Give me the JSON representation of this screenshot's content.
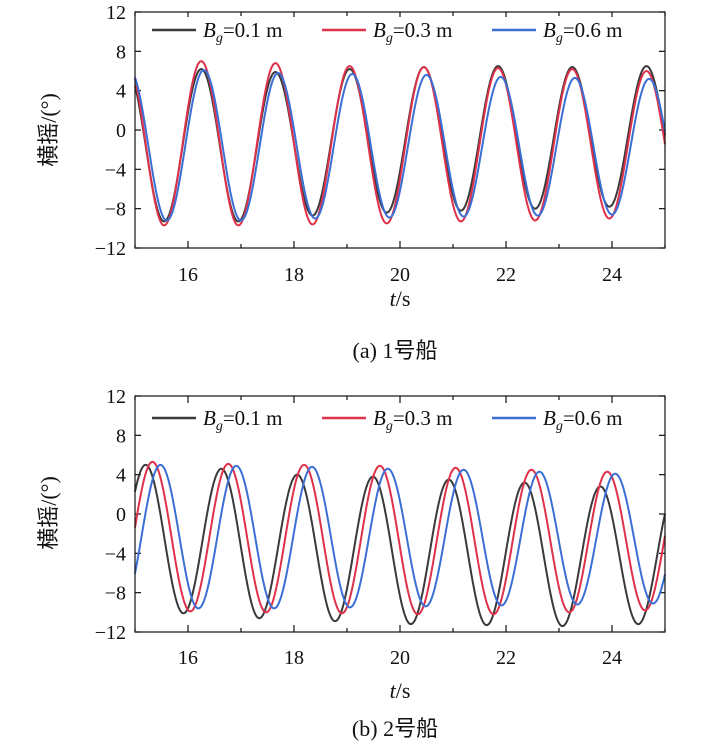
{
  "figure": {
    "panels": [
      {
        "caption": "(a) 1号船"
      },
      {
        "caption": "(b) 2号船"
      }
    ]
  },
  "chart_data": [
    {
      "type": "line",
      "caption": "(a) 1号船",
      "xlabel": {
        "italic": "t",
        "rest": "/s"
      },
      "ylabel": "横摇/(°)",
      "xlim": [
        15,
        25
      ],
      "ylim": [
        -12,
        12
      ],
      "xticks": [
        16,
        18,
        20,
        22,
        24
      ],
      "yticks": [
        -12,
        -8,
        -4,
        0,
        4,
        8,
        12
      ],
      "legend_position": "top",
      "grid": false,
      "series": [
        {
          "name": "Bg=0.1 m",
          "label_main": "B",
          "label_sub": "g",
          "label_rest": "=0.1 m",
          "color": "#3a3a3a",
          "period": 1.4,
          "first_peak": 16.25,
          "peaks": [
            6.2,
            5.9,
            6.2,
            6.4,
            6.5,
            6.4,
            6.5
          ],
          "troughs": [
            -9.3,
            -8.7,
            -8.4,
            -8.2,
            -8.0,
            -7.8,
            -7.6
          ]
        },
        {
          "name": "Bg=0.3 m",
          "label_main": "B",
          "label_sub": "g",
          "label_rest": "=0.3 m",
          "color": "#e0314a",
          "period": 1.4,
          "first_peak": 16.25,
          "peaks": [
            7.0,
            6.8,
            6.5,
            6.4,
            6.3,
            6.2,
            6.0
          ],
          "troughs": [
            -9.7,
            -9.6,
            -9.5,
            -9.3,
            -9.2,
            -9.0,
            -8.9
          ]
        },
        {
          "name": "Bg=0.6 m",
          "label_main": "B",
          "label_sub": "g",
          "label_rest": "=0.6 m",
          "color": "#3b6fd6",
          "period": 1.4,
          "first_peak": 16.3,
          "peaks": [
            6.1,
            5.8,
            5.7,
            5.6,
            5.4,
            5.3,
            5.2
          ],
          "troughs": [
            -9.2,
            -9.0,
            -8.9,
            -8.8,
            -8.7,
            -8.6,
            -8.6
          ]
        }
      ]
    },
    {
      "type": "line",
      "caption": "(b) 2号船",
      "xlabel": {
        "italic": "t",
        "rest": "/s"
      },
      "ylabel": "横摇/(°)",
      "xlim": [
        15,
        25
      ],
      "ylim": [
        -12,
        12
      ],
      "xticks": [
        16,
        18,
        20,
        22,
        24
      ],
      "yticks": [
        -12,
        -8,
        -4,
        0,
        4,
        8,
        12
      ],
      "legend_position": "top",
      "grid": false,
      "series": [
        {
          "name": "Bg=0.1 m",
          "label_main": "B",
          "label_sub": "g",
          "label_rest": "=0.1 m",
          "color": "#3a3a3a",
          "period": 1.43,
          "first_peak": 15.2,
          "peaks": [
            5.0,
            4.6,
            4.0,
            3.8,
            3.5,
            3.2,
            2.8
          ],
          "troughs": [
            -10.1,
            -10.6,
            -10.9,
            -11.2,
            -11.3,
            -11.4,
            -11.2
          ]
        },
        {
          "name": "Bg=0.3 m",
          "label_main": "B",
          "label_sub": "g",
          "label_rest": "=0.3 m",
          "color": "#e0314a",
          "period": 1.43,
          "first_peak": 15.33,
          "peaks": [
            5.3,
            5.1,
            5.0,
            4.9,
            4.7,
            4.5,
            4.3
          ],
          "troughs": [
            -9.9,
            -10.0,
            -10.1,
            -10.2,
            -10.2,
            -10.0,
            -9.8
          ]
        },
        {
          "name": "Bg=0.6 m",
          "label_main": "B",
          "label_sub": "g",
          "label_rest": "=0.6 m",
          "color": "#3b6fd6",
          "period": 1.43,
          "first_peak": 15.48,
          "peaks": [
            5.0,
            4.9,
            4.8,
            4.6,
            4.5,
            4.3,
            4.1
          ],
          "troughs": [
            -9.6,
            -9.6,
            -9.5,
            -9.4,
            -9.3,
            -9.2,
            -9.1
          ]
        }
      ]
    }
  ]
}
